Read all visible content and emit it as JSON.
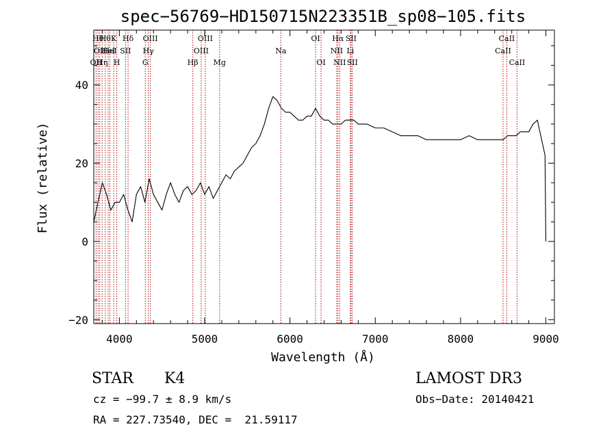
{
  "chart_data": {
    "type": "line",
    "title": "spec−56769−HD150715N223351B_sp08−105.fits",
    "xlabel": "Wavelength (Å)",
    "ylabel": "Flux (relative)",
    "xlim": [
      3700,
      9100
    ],
    "ylim": [
      -21,
      54
    ],
    "x_ticks": [
      4000,
      5000,
      6000,
      7000,
      8000,
      9000
    ],
    "x_tick_labels": [
      "4000",
      "5000",
      "6000",
      "7000",
      "8000",
      "9000"
    ],
    "y_ticks": [
      -20,
      0,
      20,
      40
    ],
    "y_tick_labels": [
      "−20",
      "0",
      "20",
      "40"
    ],
    "series": [
      {
        "name": "flux",
        "x": [
          3700,
          3750,
          3800,
          3850,
          3900,
          3950,
          4000,
          4050,
          4100,
          4150,
          4200,
          4250,
          4300,
          4350,
          4400,
          4450,
          4500,
          4550,
          4600,
          4650,
          4700,
          4750,
          4800,
          4850,
          4900,
          4950,
          5000,
          5050,
          5100,
          5150,
          5200,
          5250,
          5300,
          5350,
          5400,
          5450,
          5500,
          5550,
          5600,
          5650,
          5700,
          5750,
          5800,
          5850,
          5900,
          5950,
          6000,
          6050,
          6100,
          6150,
          6200,
          6250,
          6300,
          6350,
          6400,
          6450,
          6500,
          6550,
          6600,
          6650,
          6700,
          6750,
          6800,
          6900,
          7000,
          7100,
          7200,
          7300,
          7400,
          7500,
          7600,
          7700,
          7800,
          7900,
          8000,
          8100,
          8200,
          8300,
          8400,
          8450,
          8500,
          8550,
          8600,
          8650,
          8700,
          8750,
          8800,
          8850,
          8900,
          8930,
          8960,
          8990,
          9000
        ],
        "y": [
          5,
          10,
          15,
          12,
          8,
          10,
          10,
          12,
          8,
          5,
          12,
          14,
          10,
          16,
          12,
          10,
          8,
          12,
          15,
          12,
          10,
          13,
          14,
          12,
          13,
          15,
          12,
          14,
          11,
          13,
          15,
          17,
          16,
          18,
          19,
          20,
          22,
          24,
          25,
          27,
          30,
          34,
          37,
          36,
          34,
          33,
          33,
          32,
          31,
          31,
          32,
          32,
          34,
          32,
          31,
          31,
          30,
          30,
          30,
          31,
          31,
          31,
          30,
          30,
          29,
          29,
          28,
          27,
          27,
          27,
          26,
          26,
          26,
          26,
          26,
          27,
          26,
          26,
          26,
          26,
          26,
          27,
          27,
          27,
          28,
          28,
          28,
          30,
          31,
          28,
          25,
          22,
          0
        ]
      }
    ],
    "line_markers": [
      {
        "wavelength": 3727,
        "label": "OII",
        "row": 2
      },
      {
        "wavelength": 3750,
        "label": "Hθ",
        "row": 0
      },
      {
        "wavelength": 3770,
        "label": "OII",
        "row": 1
      },
      {
        "wavelength": 3798,
        "label": "Hη",
        "row": 2
      },
      {
        "wavelength": 3835,
        "label": "Hθ",
        "row": 0
      },
      {
        "wavelength": 3869,
        "label": "HeI",
        "row": 1
      },
      {
        "wavelength": 3889,
        "label": "HeI",
        "row": 1
      },
      {
        "wavelength": 3934,
        "label": "K",
        "row": 0
      },
      {
        "wavelength": 3970,
        "label": "H",
        "row": 2
      },
      {
        "wavelength": 4072,
        "label": "SII",
        "row": 1
      },
      {
        "wavelength": 4102,
        "label": "Hδ",
        "row": 0
      },
      {
        "wavelength": 4304,
        "label": "G",
        "row": 2
      },
      {
        "wavelength": 4340,
        "label": "Hγ",
        "row": 1
      },
      {
        "wavelength": 4363,
        "label": "OIII",
        "row": 0
      },
      {
        "wavelength": 4861,
        "label": "Hβ",
        "row": 2
      },
      {
        "wavelength": 4959,
        "label": "OIII",
        "row": 1
      },
      {
        "wavelength": 5007,
        "label": "OIII",
        "row": 0
      },
      {
        "wavelength": 5175,
        "label": "Mg",
        "row": 2
      },
      {
        "wavelength": 5893,
        "label": "Na",
        "row": 1
      },
      {
        "wavelength": 6300,
        "label": "OI",
        "row": 0
      },
      {
        "wavelength": 6364,
        "label": "OI",
        "row": 2
      },
      {
        "wavelength": 6548,
        "label": "NII",
        "row": 1
      },
      {
        "wavelength": 6563,
        "label": "Hα",
        "row": 0
      },
      {
        "wavelength": 6583,
        "label": "NII",
        "row": 2
      },
      {
        "wavelength": 6708,
        "label": "Li",
        "row": 1
      },
      {
        "wavelength": 6716,
        "label": "SII",
        "row": 0
      },
      {
        "wavelength": 6731,
        "label": "SII",
        "row": 2
      },
      {
        "wavelength": 8498,
        "label": "CaII",
        "row": 1
      },
      {
        "wavelength": 8542,
        "label": "CaII",
        "row": 0
      },
      {
        "wavelength": 8662,
        "label": "CaII",
        "row": 2
      }
    ]
  },
  "info": {
    "object_class": "STAR",
    "subclass": "K4",
    "survey": "LAMOST DR3",
    "redshift": "cz = −99.7 ± 8.9 km/s",
    "obs_date": "Obs−Date: 20140421",
    "coords": "RA = 227.73540, DEC =  21.59117"
  },
  "colors": {
    "spectrum": "#000000",
    "marker": "#aa0000",
    "axes": "#000000"
  }
}
